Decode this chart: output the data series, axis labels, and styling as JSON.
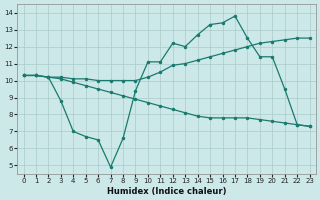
{
  "xlabel": "Humidex (Indice chaleur)",
  "bg_color": "#cce8e8",
  "grid_color": "#aacccc",
  "line_color": "#1a7a6e",
  "xlim": [
    -0.5,
    23.5
  ],
  "ylim": [
    4.5,
    14.5
  ],
  "xticks": [
    0,
    1,
    2,
    3,
    4,
    5,
    6,
    7,
    8,
    9,
    10,
    11,
    12,
    13,
    14,
    15,
    16,
    17,
    18,
    19,
    20,
    21,
    22,
    23
  ],
  "yticks": [
    5,
    6,
    7,
    8,
    9,
    10,
    11,
    12,
    13,
    14
  ],
  "upper_x": [
    0,
    1,
    2,
    3,
    4,
    5,
    6,
    7,
    8,
    9,
    10,
    11,
    12,
    13,
    14,
    15,
    16,
    17,
    18,
    19,
    20,
    21,
    22,
    23
  ],
  "upper_y": [
    10.3,
    10.3,
    10.2,
    10.2,
    10.1,
    10.1,
    10.0,
    10.0,
    10.0,
    10.0,
    10.2,
    10.5,
    10.9,
    11.0,
    11.2,
    11.4,
    11.6,
    11.8,
    12.0,
    12.2,
    12.3,
    12.4,
    12.5,
    12.5
  ],
  "lower_x": [
    0,
    1,
    2,
    3,
    4,
    5,
    6,
    7,
    8,
    9,
    10,
    11,
    12,
    13,
    14,
    15,
    16,
    17,
    18,
    19,
    20,
    21,
    22,
    23
  ],
  "lower_y": [
    10.3,
    10.3,
    10.2,
    10.1,
    9.9,
    9.7,
    9.5,
    9.3,
    9.1,
    8.9,
    8.7,
    8.5,
    8.3,
    8.1,
    7.9,
    7.8,
    7.8,
    7.8,
    7.8,
    7.7,
    7.6,
    7.5,
    7.4,
    7.3
  ],
  "zigzag_x": [
    0,
    1,
    2,
    3,
    4,
    5,
    6,
    7,
    8,
    9,
    10,
    11,
    12,
    13,
    14,
    15,
    16,
    17,
    18,
    19,
    20,
    21,
    22,
    23
  ],
  "zigzag_y": [
    10.3,
    10.3,
    10.2,
    8.8,
    7.0,
    6.7,
    6.5,
    4.9,
    6.6,
    9.4,
    11.1,
    11.1,
    12.2,
    12.0,
    12.7,
    13.3,
    13.4,
    13.8,
    12.5,
    11.4,
    11.4,
    9.5,
    7.4,
    7.3
  ]
}
